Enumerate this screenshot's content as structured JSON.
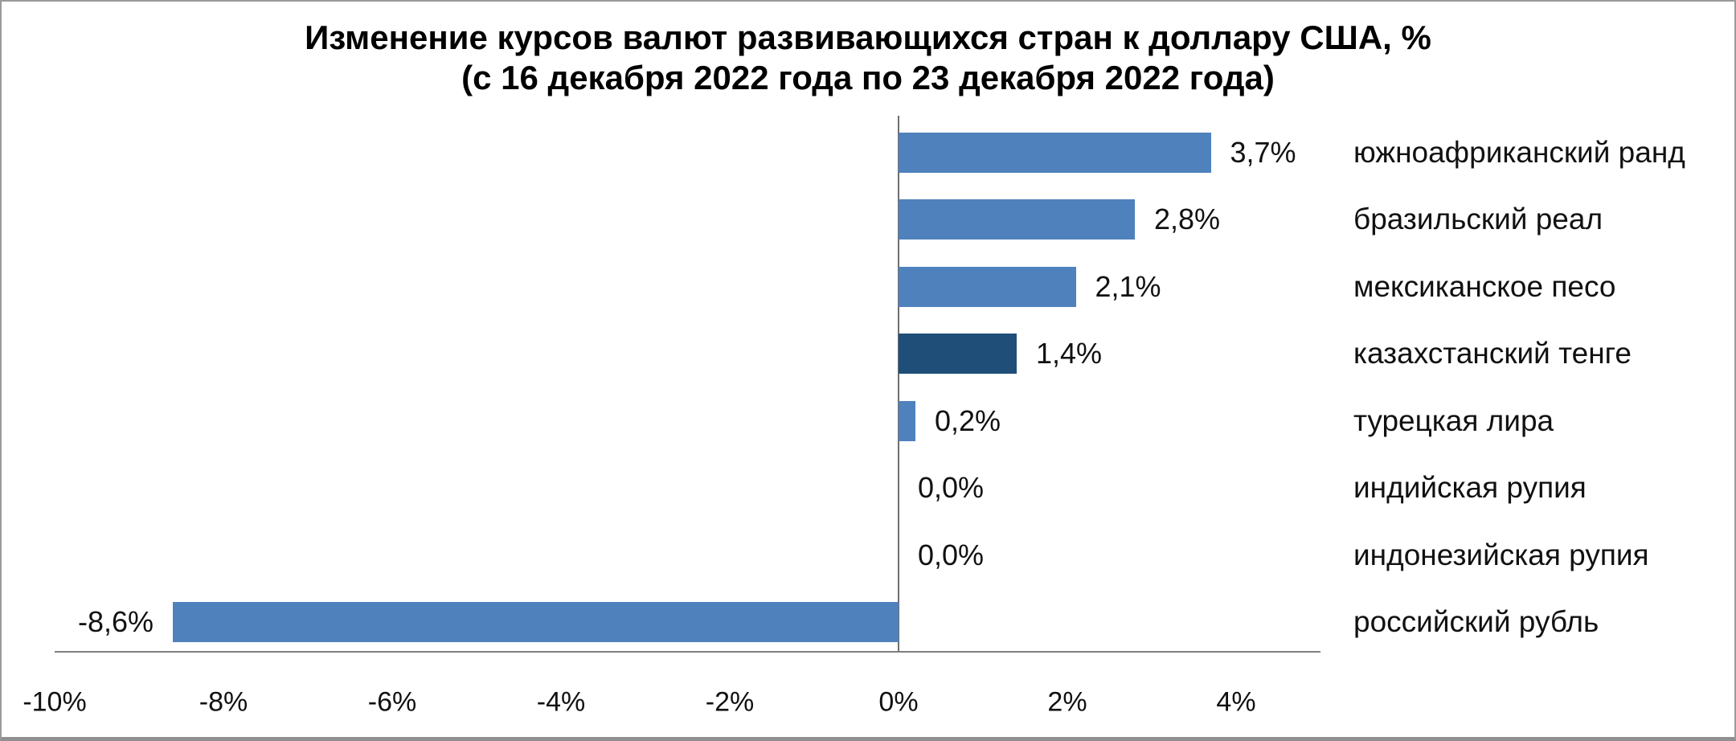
{
  "chart_data": {
    "type": "bar",
    "orientation": "horizontal",
    "title": "Изменение курсов валют развивающихся стран к доллару США, %",
    "subtitle": "(с 16 декабря 2022 года по 23 декабря 2022 года)",
    "categories": [
      "южноафриканский ранд",
      "бразильский реал",
      "мексиканское песо",
      "казахстанский тенге",
      "турецкая лира",
      "индийская рупия",
      "индонезийская рупия",
      "российский рубль"
    ],
    "values": [
      3.7,
      2.8,
      2.1,
      1.4,
      0.2,
      0.0,
      0.0,
      -8.6
    ],
    "value_labels": [
      "3,7%",
      "2,8%",
      "2,1%",
      "1,4%",
      "0,2%",
      "0,0%",
      "0,0%",
      "-8,6%"
    ],
    "highlight_index": 3,
    "bar_color": "#4f81bd",
    "highlight_color": "#1f4e79",
    "x_ticks": [
      {
        "value": -10,
        "label": "-10%"
      },
      {
        "value": -8,
        "label": "-8%"
      },
      {
        "value": -6,
        "label": "-6%"
      },
      {
        "value": -4,
        "label": "-4%"
      },
      {
        "value": -2,
        "label": "-2%"
      },
      {
        "value": 0,
        "label": "0%"
      },
      {
        "value": 2,
        "label": "2%"
      },
      {
        "value": 4,
        "label": "4%"
      }
    ],
    "xlim": [
      -10,
      5
    ],
    "xlabel": "",
    "ylabel": "",
    "grid": false,
    "legend": false,
    "axis_color": "#808080",
    "text_color": "#111111",
    "background_color": "#ffffff"
  }
}
